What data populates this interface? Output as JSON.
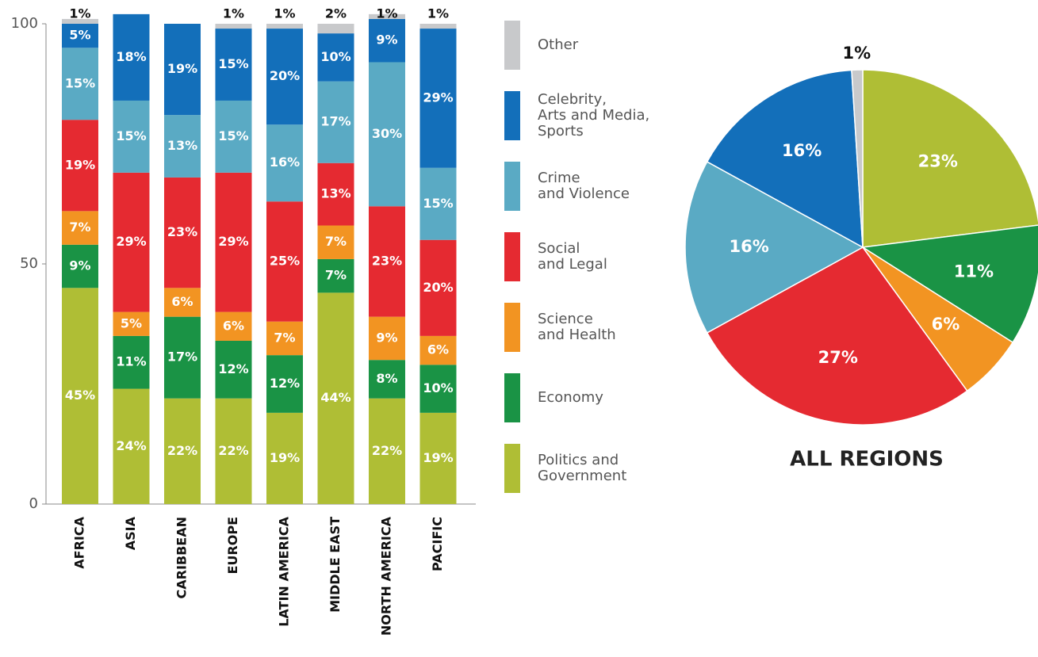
{
  "chart_data": [
    {
      "type": "bar",
      "stacked": true,
      "categories": [
        "AFRICA",
        "ASIA",
        "CARIBBEAN",
        "EUROPE",
        "LATIN AMERICA",
        "MIDDLE EAST",
        "NORTH AMERICA",
        "PACIFIC"
      ],
      "ylim": [
        0,
        100
      ],
      "yticks": [
        0,
        50,
        100
      ],
      "series": [
        {
          "name": "Politics and\nGovernment",
          "color": "#afbe35",
          "values": [
            45,
            24,
            22,
            22,
            19,
            44,
            22,
            19
          ],
          "value_labels": [
            "45%",
            "24%",
            "22%",
            "22%",
            "19%",
            "44%",
            "22%",
            "19%"
          ]
        },
        {
          "name": "Economy",
          "color": "#1a9345",
          "values": [
            9,
            11,
            17,
            12,
            12,
            7,
            8,
            10
          ],
          "value_labels": [
            "9%",
            "11%",
            "17%",
            "12%",
            "12%",
            "7%",
            "8%",
            "10%"
          ]
        },
        {
          "name": "Science\nand Health",
          "color": "#f29422",
          "values": [
            7,
            5,
            6,
            6,
            7,
            7,
            9,
            6
          ],
          "value_labels": [
            "7%",
            "5%",
            "6%",
            "6%",
            "7%",
            "7%",
            "9%",
            "6%"
          ]
        },
        {
          "name": "Social\nand Legal",
          "color": "#e52a31",
          "values": [
            19,
            29,
            23,
            29,
            25,
            13,
            23,
            20
          ],
          "value_labels": [
            "19%",
            "29%",
            "23%",
            "29%",
            "25%",
            "13%",
            "23%",
            "20%"
          ]
        },
        {
          "name": "Crime\nand Violence",
          "color": "#5aaac4",
          "values": [
            15,
            15,
            13,
            15,
            16,
            17,
            30,
            15
          ],
          "value_labels": [
            "15%",
            "15%",
            "13%",
            "15%",
            "16%",
            "17%",
            "30%",
            "15%"
          ]
        },
        {
          "name": "Celebrity,\nArts and Media,\nSports",
          "color": "#136fba",
          "values": [
            5,
            18,
            19,
            15,
            20,
            10,
            9,
            29
          ],
          "value_labels": [
            "5%",
            "18%",
            "19%",
            "15%",
            "20%",
            "10%",
            "9%",
            "29%"
          ]
        },
        {
          "name": "Other",
          "color": "#c8c9cb",
          "values": [
            1,
            null,
            null,
            1,
            1,
            2,
            1,
            1
          ],
          "value_labels": [
            "1%",
            null,
            null,
            "1%",
            "1%",
            "2%",
            "1%",
            "1%"
          ]
        }
      ]
    },
    {
      "type": "pie",
      "title": "ALL REGIONS",
      "values": [
        23,
        11,
        6,
        27,
        16,
        16,
        1
      ],
      "value_labels": [
        "23%",
        "11%",
        "6%",
        "27%",
        "16%",
        "16%",
        "1%"
      ],
      "colors": [
        "#afbe35",
        "#1a9345",
        "#f29422",
        "#e52a31",
        "#5aaac4",
        "#136fba",
        "#c8c9cb"
      ]
    }
  ]
}
